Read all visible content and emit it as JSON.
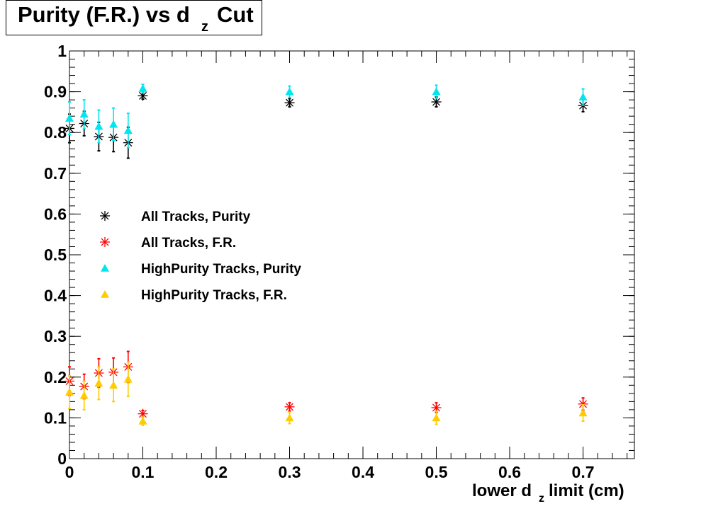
{
  "title": {
    "main": "Purity (F.R.) vs d",
    "subscript": "z",
    "suffix": "Cut"
  },
  "xlabel": {
    "prefix": "lower d",
    "subscript": "z",
    "suffix": " limit (cm)"
  },
  "chart_data": {
    "type": "scatter",
    "xlim": [
      0,
      0.77
    ],
    "ylim": [
      0,
      1
    ],
    "x_ticks": [
      "0",
      "0.1",
      "0.2",
      "0.3",
      "0.4",
      "0.5",
      "0.6",
      "0.7"
    ],
    "y_ticks": [
      "0",
      "0.1",
      "0.2",
      "0.3",
      "0.4",
      "0.5",
      "0.6",
      "0.7",
      "0.8",
      "0.9",
      "1"
    ],
    "grid": false,
    "legend_position": "center-left",
    "x": [
      0.0,
      0.02,
      0.04,
      0.06,
      0.08,
      0.1,
      0.3,
      0.5,
      0.7
    ],
    "series": [
      {
        "name": "All Tracks, Purity",
        "marker": "star",
        "color": "#000000",
        "y": [
          0.81,
          0.822,
          0.79,
          0.788,
          0.775,
          0.89,
          0.873,
          0.875,
          0.866
        ],
        "err": [
          0.035,
          0.03,
          0.035,
          0.035,
          0.038,
          0.008,
          0.01,
          0.012,
          0.015
        ]
      },
      {
        "name": "All Tracks, F.R.",
        "marker": "star",
        "color": "#ff0000",
        "y": [
          0.19,
          0.177,
          0.21,
          0.212,
          0.225,
          0.11,
          0.127,
          0.125,
          0.134
        ],
        "err": [
          0.035,
          0.03,
          0.035,
          0.035,
          0.038,
          0.008,
          0.01,
          0.012,
          0.015
        ]
      },
      {
        "name": "HighPurity Tracks, Purity",
        "marker": "triangle",
        "color": "#00e5ee",
        "y": [
          0.835,
          0.845,
          0.815,
          0.82,
          0.805,
          0.908,
          0.9,
          0.9,
          0.887
        ],
        "err": [
          0.04,
          0.035,
          0.04,
          0.04,
          0.042,
          0.01,
          0.014,
          0.016,
          0.02
        ]
      },
      {
        "name": "HighPurity Tracks, F.R.",
        "marker": "triangle",
        "color": "#ffcc00",
        "y": [
          0.163,
          0.155,
          0.185,
          0.18,
          0.195,
          0.092,
          0.1,
          0.1,
          0.112
        ],
        "err": [
          0.04,
          0.035,
          0.04,
          0.04,
          0.042,
          0.01,
          0.014,
          0.016,
          0.02
        ]
      }
    ]
  }
}
